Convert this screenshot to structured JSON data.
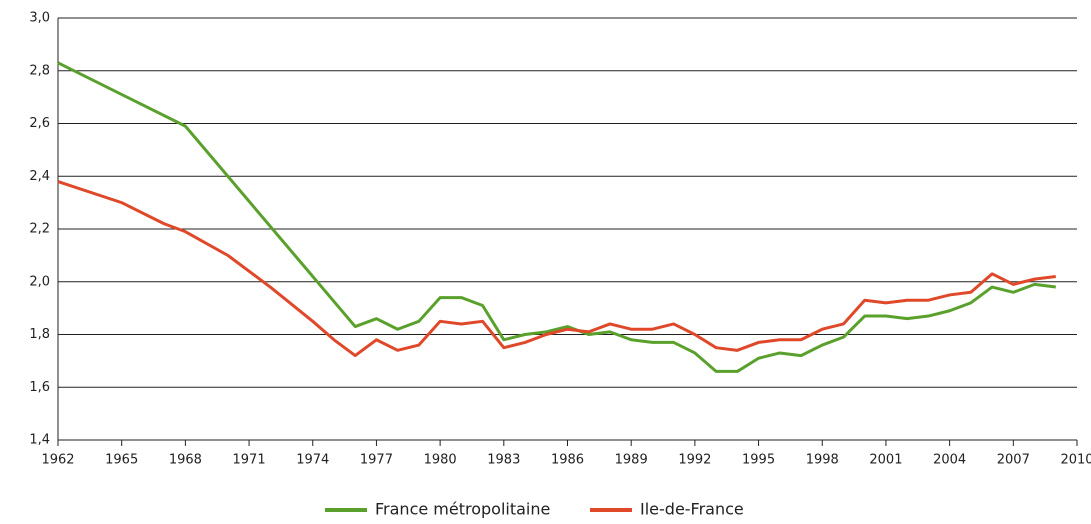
{
  "chart_data": {
    "type": "line",
    "xlim": [
      1962,
      2010
    ],
    "xticks": [
      1962,
      1965,
      1968,
      1971,
      1974,
      1977,
      1980,
      1983,
      1986,
      1989,
      1992,
      1995,
      1998,
      2001,
      2004,
      2007,
      2010
    ],
    "ylim": [
      1.4,
      3.0
    ],
    "yticks": [
      {
        "value": 1.4,
        "label": "1,4"
      },
      {
        "value": 1.6,
        "label": "1,6"
      },
      {
        "value": 1.8,
        "label": "1,8"
      },
      {
        "value": 2.0,
        "label": "2,0"
      },
      {
        "value": 2.2,
        "label": "2,2"
      },
      {
        "value": 2.4,
        "label": "2,4"
      },
      {
        "value": 2.6,
        "label": "2,6"
      },
      {
        "value": 2.8,
        "label": "2,8"
      },
      {
        "value": 3.0,
        "label": "3,0"
      }
    ],
    "grid": true,
    "legend": "bottom",
    "series": [
      {
        "name": "France métropolitaine",
        "color": "#5aa02c",
        "x": [
          1962,
          1968,
          1976,
          1977,
          1978,
          1979,
          1980,
          1981,
          1982,
          1983,
          1984,
          1985,
          1986,
          1987,
          1988,
          1989,
          1990,
          1991,
          1992,
          1993,
          1994,
          1995,
          1996,
          1997,
          1998,
          1999,
          2000,
          2001,
          2002,
          2003,
          2004,
          2005,
          2006,
          2007,
          2008,
          2009
        ],
        "values": [
          2.83,
          2.59,
          1.83,
          1.86,
          1.82,
          1.85,
          1.94,
          1.94,
          1.91,
          1.78,
          1.8,
          1.81,
          1.83,
          1.8,
          1.81,
          1.78,
          1.77,
          1.77,
          1.73,
          1.66,
          1.66,
          1.71,
          1.73,
          1.72,
          1.76,
          1.79,
          1.87,
          1.87,
          1.86,
          1.87,
          1.89,
          1.92,
          1.98,
          1.96,
          1.99,
          1.98
        ]
      },
      {
        "name": "Ile-de-France",
        "color": "#e0482a",
        "x": [
          1962,
          1965,
          1967,
          1968,
          1970,
          1972,
          1974,
          1975,
          1976,
          1977,
          1978,
          1979,
          1980,
          1981,
          1982,
          1983,
          1984,
          1985,
          1986,
          1987,
          1988,
          1989,
          1990,
          1991,
          1992,
          1993,
          1994,
          1995,
          1996,
          1997,
          1998,
          1999,
          2000,
          2001,
          2002,
          2003,
          2004,
          2005,
          2006,
          2007,
          2008,
          2009
        ],
        "values": [
          2.38,
          2.3,
          2.22,
          2.19,
          2.1,
          1.98,
          1.85,
          1.78,
          1.72,
          1.78,
          1.74,
          1.76,
          1.85,
          1.84,
          1.85,
          1.75,
          1.77,
          1.8,
          1.82,
          1.81,
          1.84,
          1.82,
          1.82,
          1.84,
          1.8,
          1.75,
          1.74,
          1.77,
          1.78,
          1.78,
          1.82,
          1.84,
          1.93,
          1.92,
          1.93,
          1.93,
          1.95,
          1.96,
          2.03,
          1.99,
          2.01,
          2.02
        ]
      }
    ]
  }
}
